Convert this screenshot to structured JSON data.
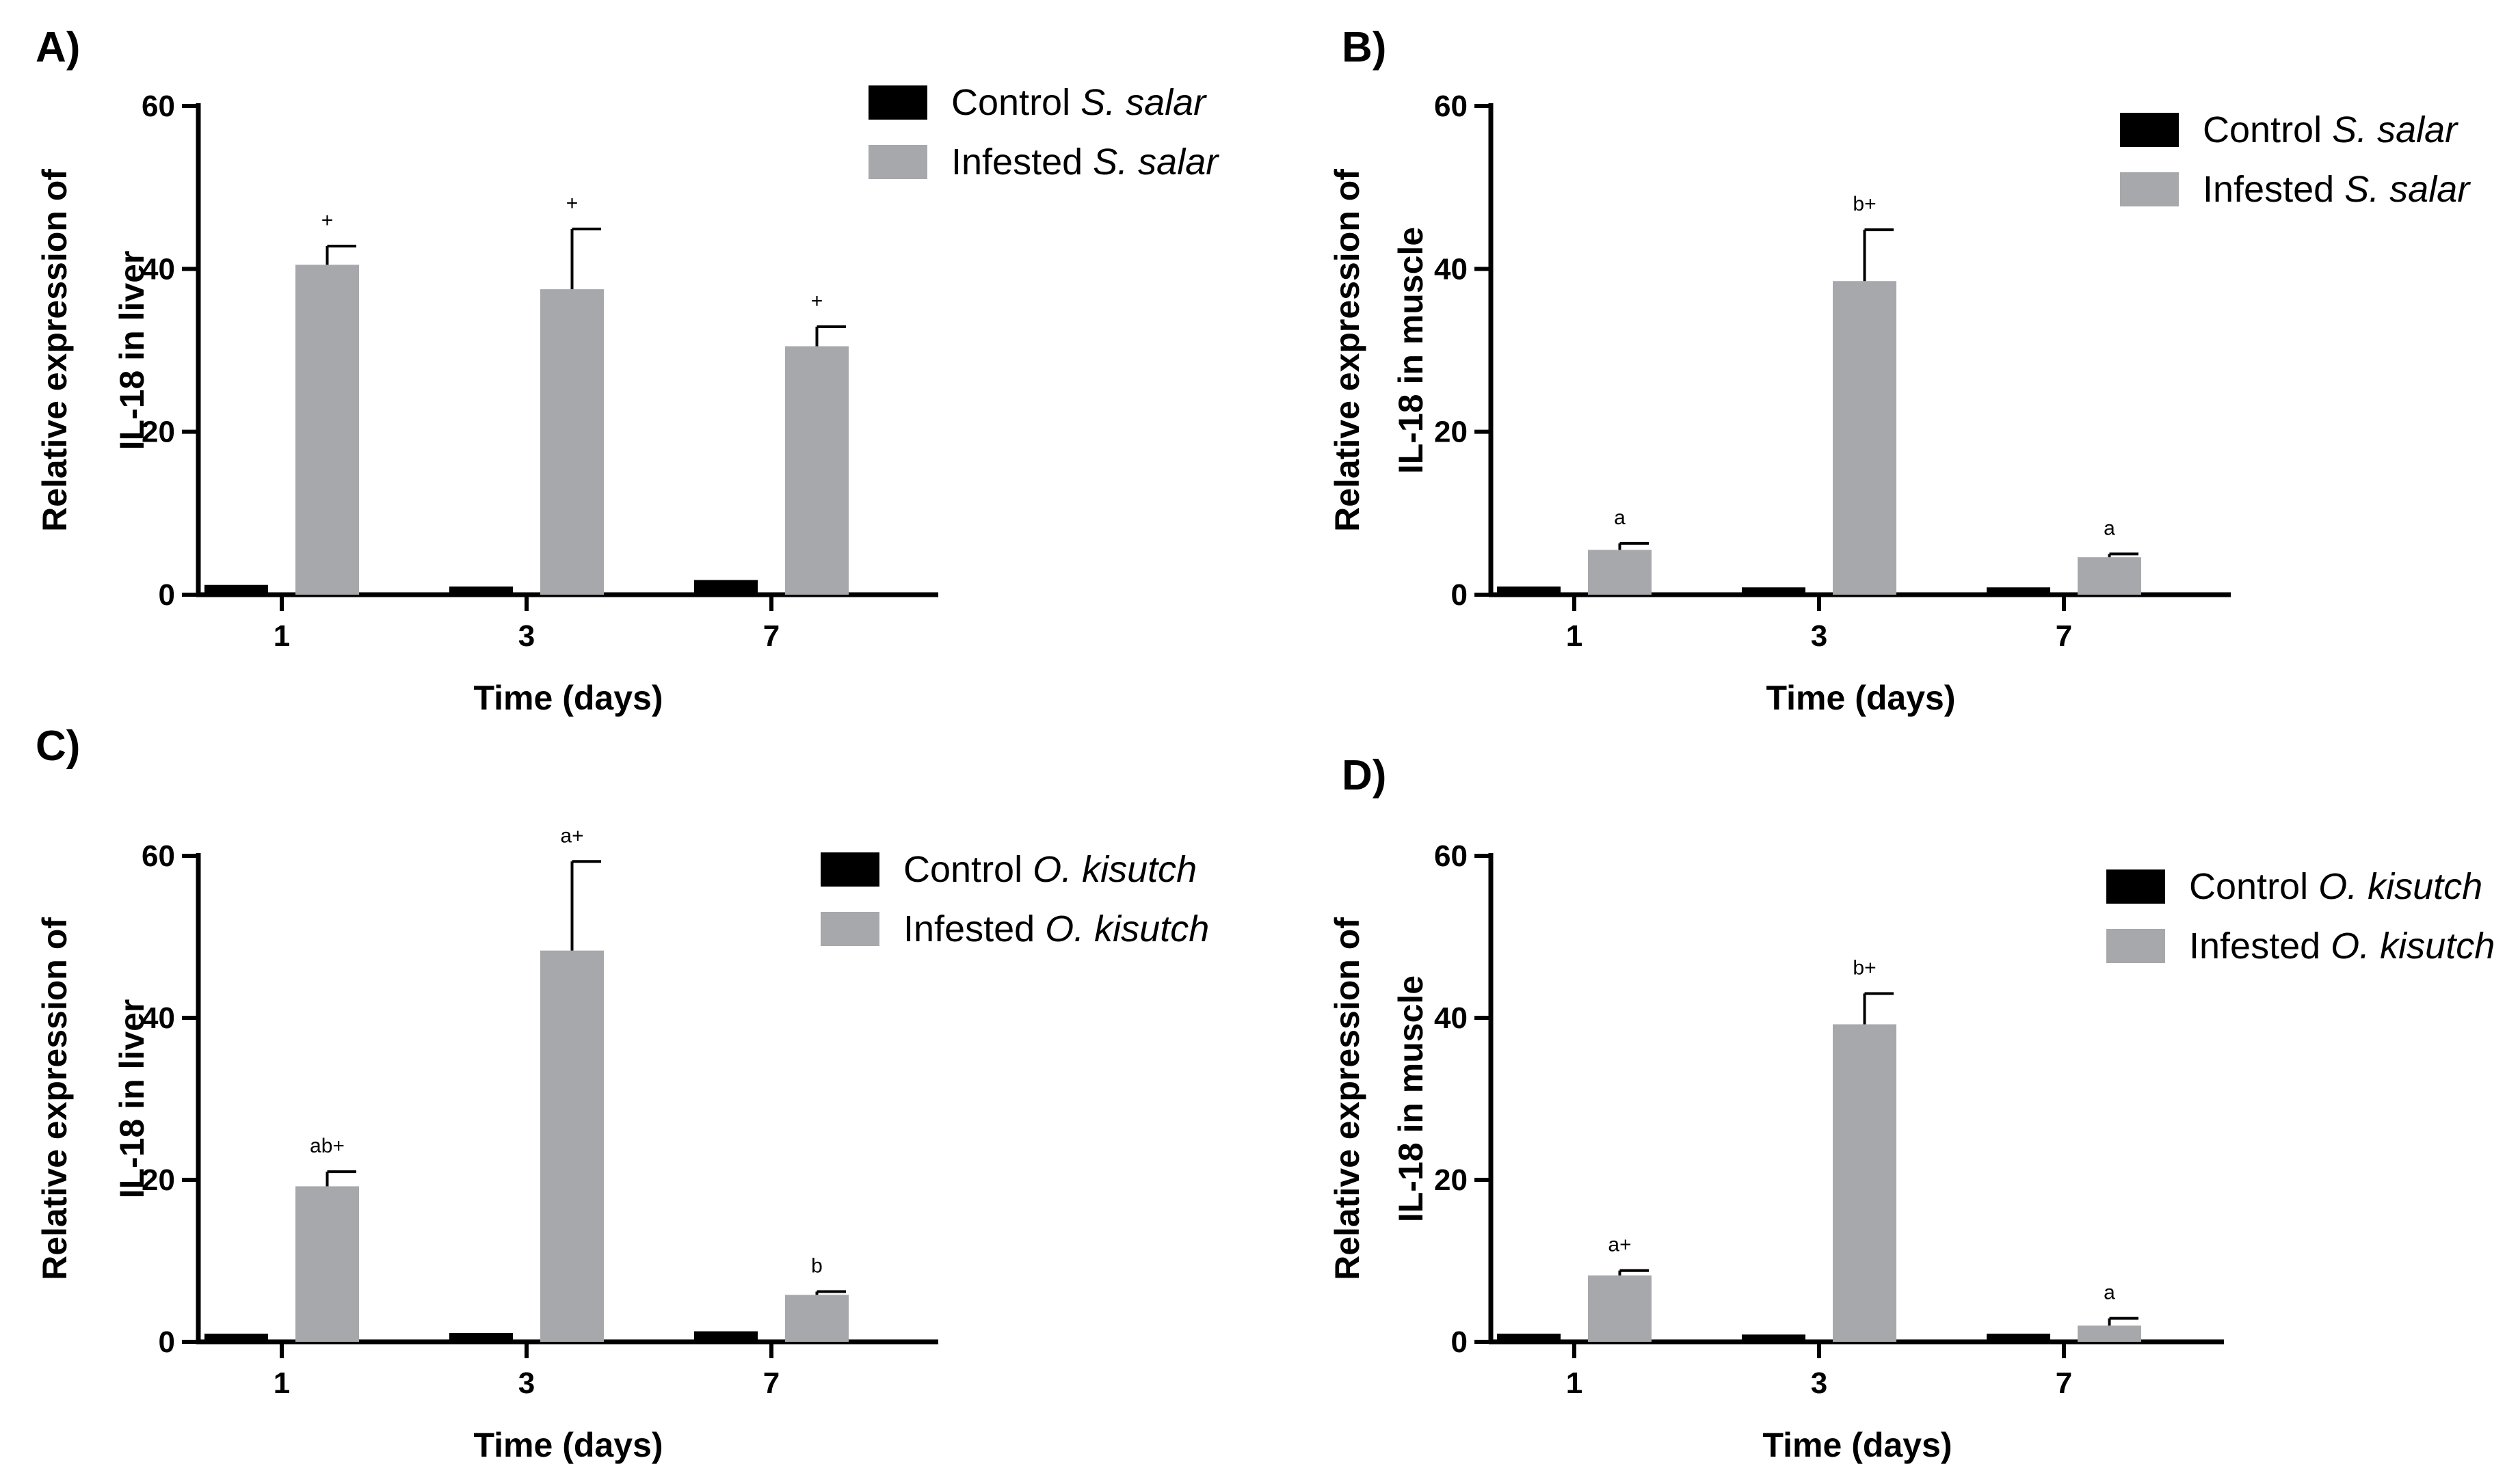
{
  "chart_data": [
    {
      "panel_label": "A)",
      "type": "bar",
      "categories": [
        "1",
        "3",
        "7"
      ],
      "series": [
        {
          "name": "Control",
          "species": "S. salar",
          "color": "#000000",
          "values": [
            1.2,
            1.0,
            1.8
          ],
          "errors": [
            0,
            0,
            0
          ],
          "annotations": [
            "",
            "",
            ""
          ]
        },
        {
          "name": "Infested",
          "species": "S. salar",
          "color": "#a7a8ab",
          "values": [
            40.5,
            37.5,
            30.5
          ],
          "errors": [
            2.3,
            7.4,
            2.4
          ],
          "annotations": [
            "+",
            "+",
            "+"
          ]
        }
      ],
      "xlabel": "Time (days)",
      "ylabel_line1": "Relative expression of",
      "ylabel_line2": "IL-18 in liver",
      "ylim": [
        0,
        60
      ],
      "yticks": [
        "0",
        "20",
        "40",
        "60"
      ],
      "grid": false,
      "legend_position": "top-right"
    },
    {
      "panel_label": "B)",
      "type": "bar",
      "categories": [
        "1",
        "3",
        "7"
      ],
      "series": [
        {
          "name": "Control",
          "species": "S. salar",
          "color": "#000000",
          "values": [
            1.0,
            0.9,
            0.9
          ],
          "errors": [
            0,
            0,
            0
          ],
          "annotations": [
            "",
            "",
            ""
          ]
        },
        {
          "name": "Infested",
          "species": "S. salar",
          "color": "#a7a8ab",
          "values": [
            5.5,
            38.5,
            4.6
          ],
          "errors": [
            0.8,
            6.3,
            0.4
          ],
          "annotations": [
            "a",
            "b+",
            "a"
          ]
        }
      ],
      "xlabel": "Time (days)",
      "ylabel_line1": "Relative expression of",
      "ylabel_line2": "IL-18 in muscle",
      "ylim": [
        0,
        60
      ],
      "yticks": [
        "0",
        "20",
        "40",
        "60"
      ],
      "grid": false,
      "legend_position": "top-right"
    },
    {
      "panel_label": "C)",
      "type": "bar",
      "categories": [
        "1",
        "3",
        "7"
      ],
      "series": [
        {
          "name": "Control",
          "species": "O. kisutch",
          "color": "#000000",
          "values": [
            1.0,
            1.1,
            1.3
          ],
          "errors": [
            0,
            0,
            0
          ],
          "annotations": [
            "",
            "",
            ""
          ]
        },
        {
          "name": "Infested",
          "species": "O. kisutch",
          "color": "#a7a8ab",
          "values": [
            19.2,
            48.3,
            5.8
          ],
          "errors": [
            1.8,
            11.0,
            0.4
          ],
          "annotations": [
            "ab+",
            "a+",
            "b"
          ]
        }
      ],
      "xlabel": "Time (days)",
      "ylabel_line1": "Relative expression of",
      "ylabel_line2": "IL-18 in liver",
      "ylim": [
        0,
        60
      ],
      "yticks": [
        "0",
        "20",
        "40",
        "60"
      ],
      "grid": false,
      "legend_position": "top-right"
    },
    {
      "panel_label": "D)",
      "type": "bar",
      "categories": [
        "1",
        "3",
        "7"
      ],
      "series": [
        {
          "name": "Control",
          "species": "O. kisutch",
          "color": "#000000",
          "values": [
            1.0,
            0.9,
            1.0
          ],
          "errors": [
            0,
            0,
            0
          ],
          "annotations": [
            "",
            "",
            ""
          ]
        },
        {
          "name": "Infested",
          "species": "O. kisutch",
          "color": "#a7a8ab",
          "values": [
            8.2,
            39.2,
            2.0
          ],
          "errors": [
            0.6,
            3.8,
            0.9
          ],
          "annotations": [
            "a+",
            "b+",
            "a"
          ]
        }
      ],
      "xlabel": "Time (days)",
      "ylabel_line1": "Relative expression of",
      "ylabel_line2": "IL-18 in muscle",
      "ylim": [
        0,
        60
      ],
      "yticks": [
        "0",
        "20",
        "40",
        "60"
      ],
      "grid": false,
      "legend_position": "top-right"
    }
  ]
}
